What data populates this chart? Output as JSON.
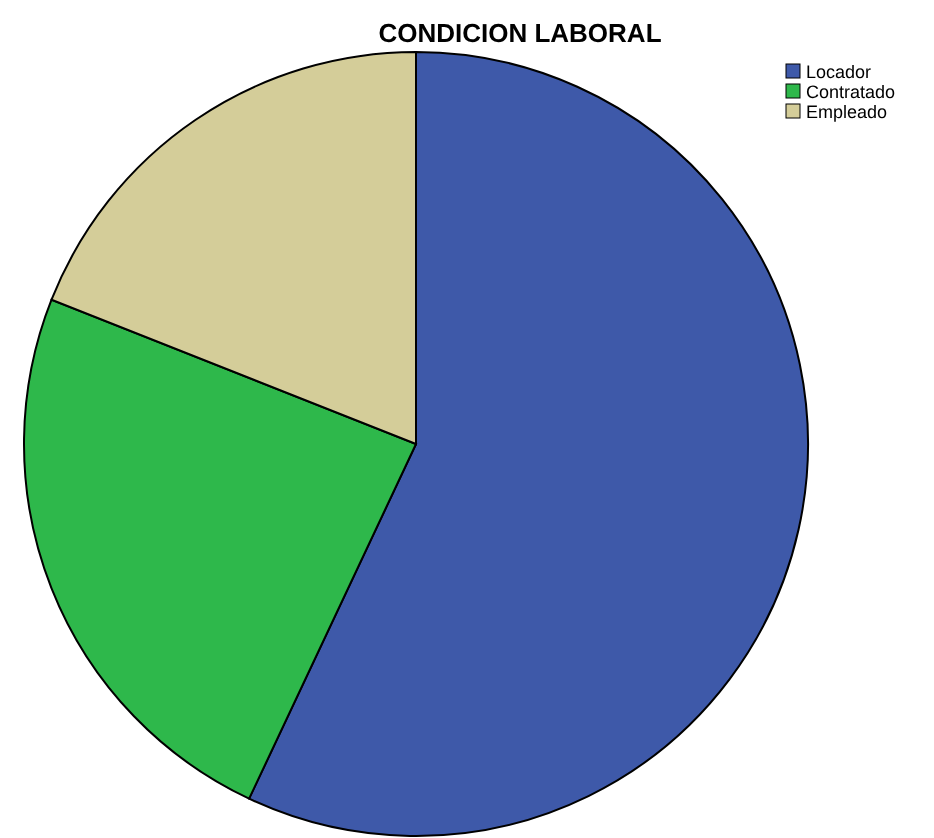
{
  "chart_data": {
    "type": "pie",
    "title": "CONDICION LABORAL",
    "categories": [
      "Locador",
      "Contratado",
      "Empleado"
    ],
    "values": [
      57,
      24,
      19
    ],
    "colors": [
      "#3e59a9",
      "#2eb84b",
      "#d4cd99"
    ],
    "legend": "top right"
  }
}
